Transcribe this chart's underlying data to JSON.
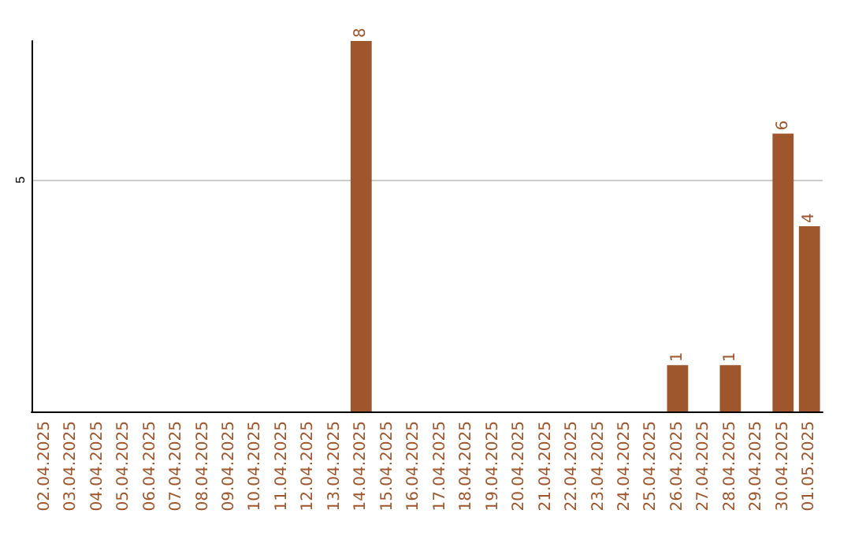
{
  "chart_data": {
    "type": "bar",
    "categories": [
      "02.04.2025",
      "03.04.2025",
      "04.04.2025",
      "05.04.2025",
      "06.04.2025",
      "07.04.2025",
      "08.04.2025",
      "09.04.2025",
      "10.04.2025",
      "11.04.2025",
      "12.04.2025",
      "13.04.2025",
      "14.04.2025",
      "15.04.2025",
      "16.04.2025",
      "17.04.2025",
      "18.04.2025",
      "19.04.2025",
      "20.04.2025",
      "21.04.2025",
      "22.04.2025",
      "23.04.2025",
      "24.04.2025",
      "25.04.2025",
      "26.04.2025",
      "27.04.2025",
      "28.04.2025",
      "29.04.2025",
      "30.04.2025",
      "01.05.2025"
    ],
    "values": [
      null,
      null,
      null,
      null,
      null,
      null,
      null,
      null,
      null,
      null,
      null,
      null,
      8,
      null,
      null,
      null,
      null,
      null,
      null,
      null,
      null,
      null,
      null,
      null,
      1,
      null,
      1,
      null,
      6,
      4
    ],
    "data_labels": true,
    "color": "#a0562c",
    "ylim": [
      0,
      8
    ],
    "yticks": [
      5
    ],
    "grid": "y"
  }
}
